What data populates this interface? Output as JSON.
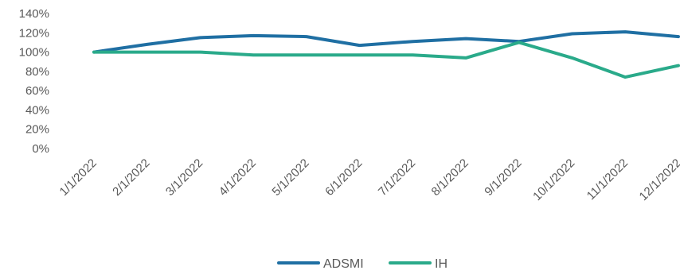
{
  "chart_data": {
    "type": "line",
    "title": "",
    "xlabel": "",
    "ylabel": "",
    "categories": [
      "1/1/2022",
      "2/1/2022",
      "3/1/2022",
      "4/1/2022",
      "5/1/2022",
      "6/1/2022",
      "7/1/2022",
      "8/1/2022",
      "9/1/2022",
      "10/1/2022",
      "11/1/2022",
      "12/1/2022"
    ],
    "y_ticks": [
      "0%",
      "20%",
      "40%",
      "60%",
      "80%",
      "100%",
      "120%",
      "140%"
    ],
    "ylim": [
      0,
      140
    ],
    "y_unit": "percent",
    "grid": false,
    "legend_position": "bottom",
    "series": [
      {
        "name": "ADSMI",
        "color": "#1f6fa3",
        "values": [
          100,
          108,
          115,
          117,
          116,
          107,
          111,
          114,
          111,
          119,
          121,
          116
        ]
      },
      {
        "name": "IH",
        "color": "#2aaa8a",
        "values": [
          100,
          100,
          100,
          97,
          97,
          97,
          97,
          94,
          110,
          94,
          74,
          86
        ]
      }
    ]
  }
}
